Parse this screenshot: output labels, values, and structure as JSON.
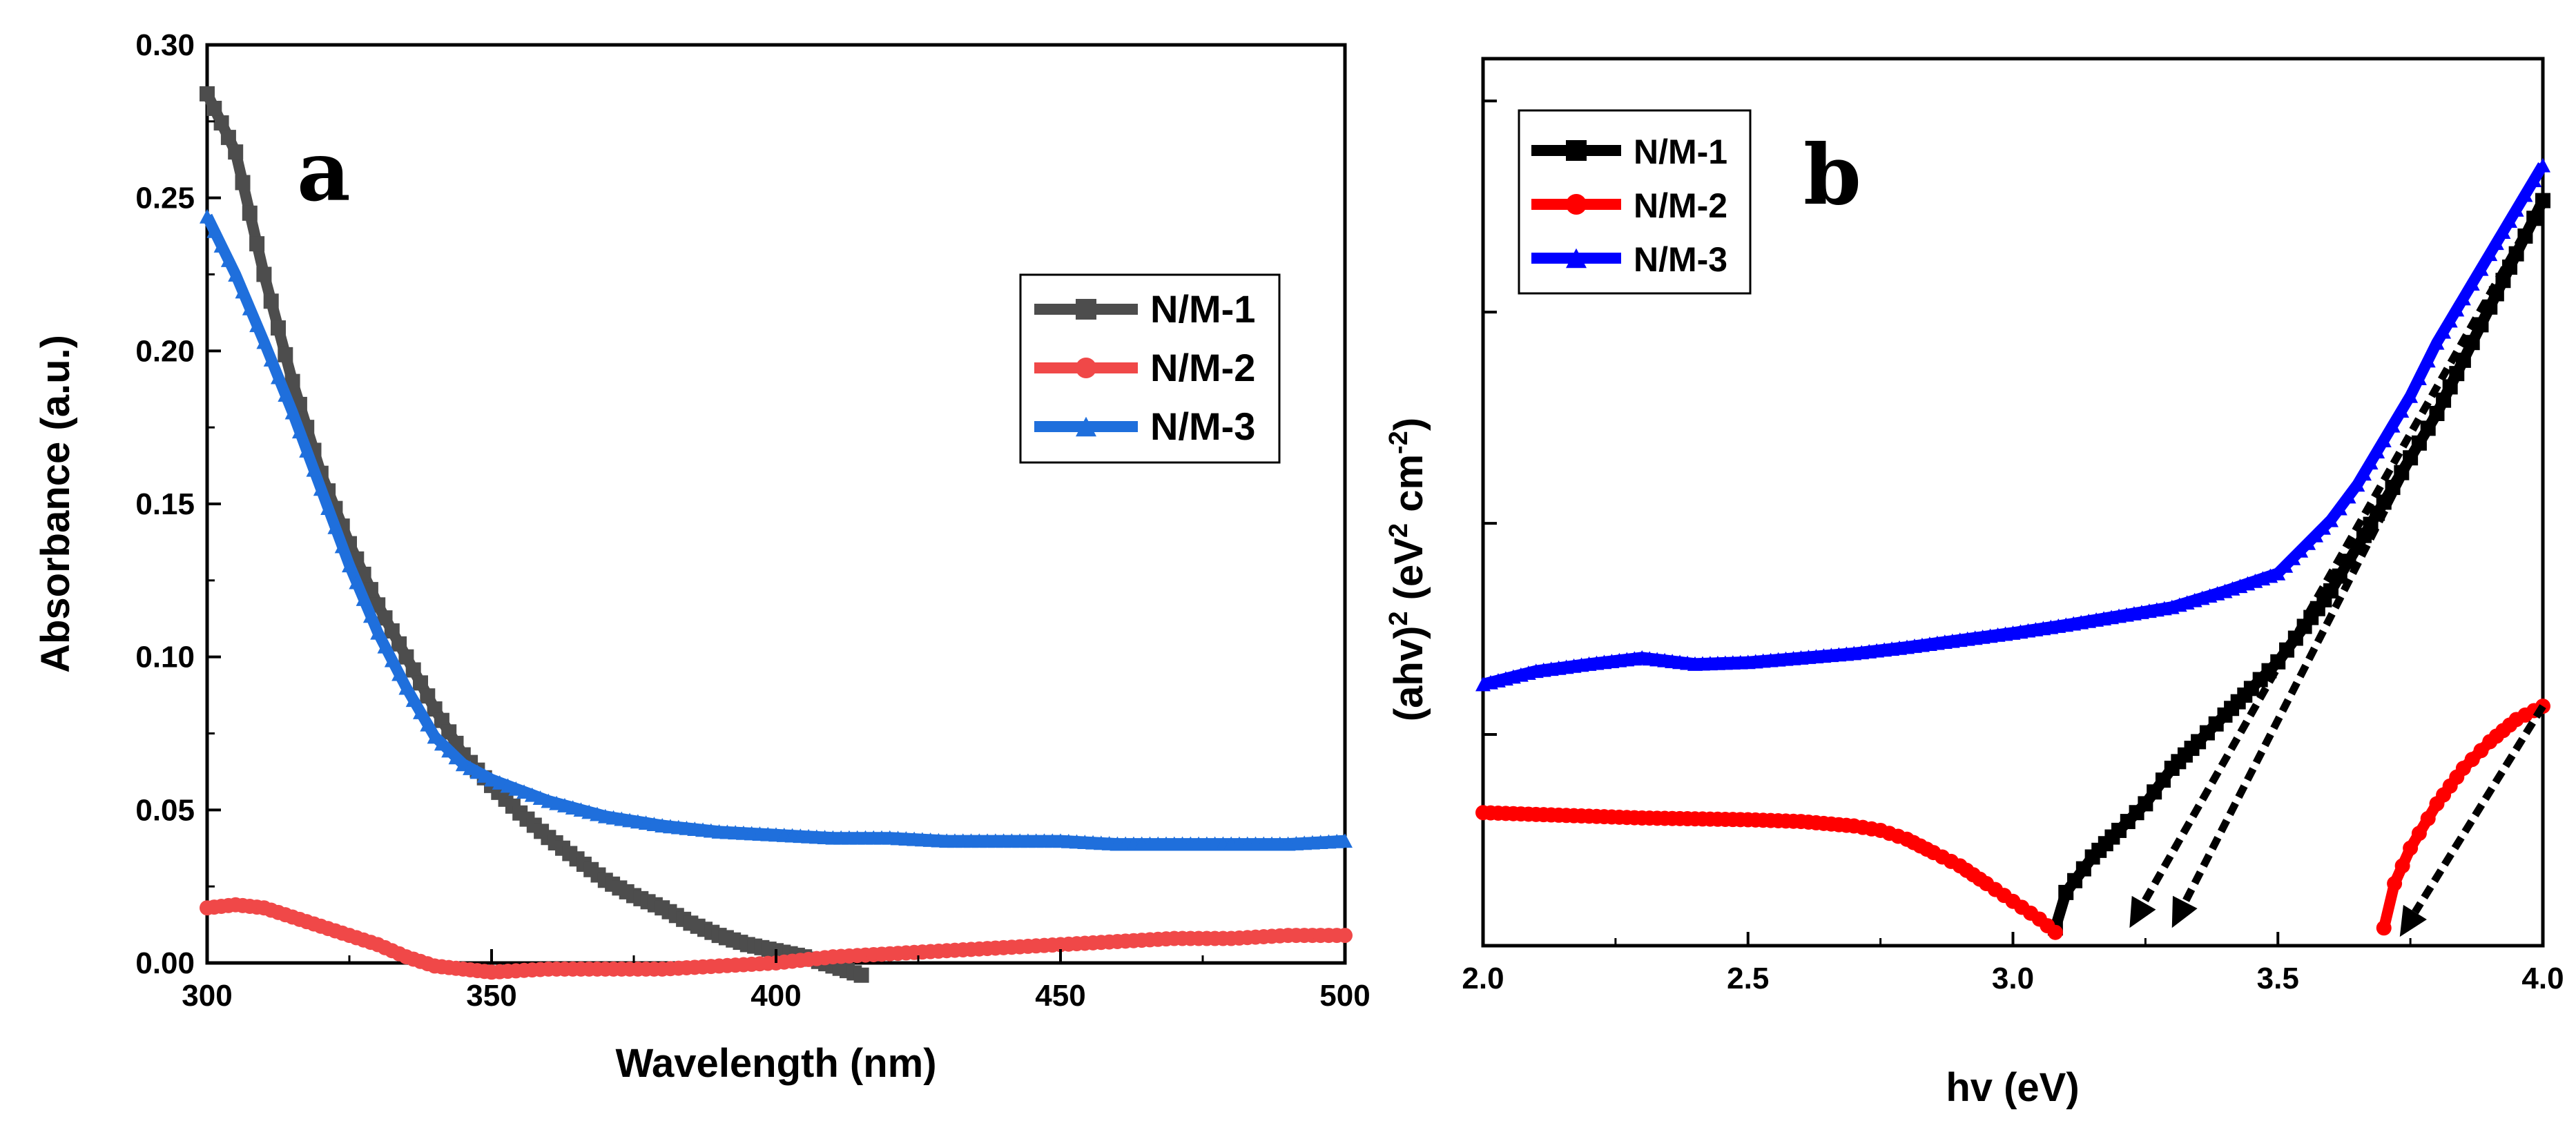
{
  "chart_data": [
    {
      "panel_label": "a",
      "type": "scatter",
      "xlabel": "Wavelength (nm)",
      "ylabel": "Absorbance (a.u.)",
      "xlim": [
        300,
        500
      ],
      "ylim": [
        0,
        0.3
      ],
      "x_ticks": [
        "300",
        "350",
        "400",
        "450",
        "500"
      ],
      "y_ticks": [
        "0.00",
        "0.05",
        "0.10",
        "0.15",
        "0.20",
        "0.25",
        "0.30"
      ],
      "legend_position": "right-middle",
      "series": [
        {
          "name": "N/M-1",
          "color": "#4d4d4d",
          "marker": "square",
          "x": [
            300,
            305,
            310,
            315,
            320,
            325,
            330,
            335,
            340,
            345,
            350,
            355,
            360,
            365,
            370,
            375,
            380,
            385,
            390,
            395,
            400,
            405,
            410,
            415
          ],
          "y": [
            0.284,
            0.265,
            0.225,
            0.19,
            0.16,
            0.137,
            0.117,
            0.1,
            0.083,
            0.068,
            0.058,
            0.049,
            0.041,
            0.034,
            0.027,
            0.022,
            0.018,
            0.013,
            0.009,
            0.006,
            0.004,
            0.002,
            -0.001,
            -0.004
          ]
        },
        {
          "name": "N/M-2",
          "color": "#f04848",
          "marker": "circle",
          "x": [
            300,
            305,
            310,
            315,
            320,
            325,
            330,
            335,
            340,
            345,
            350,
            360,
            370,
            380,
            390,
            400,
            410,
            420,
            430,
            440,
            450,
            460,
            470,
            480,
            490,
            500
          ],
          "y": [
            0.018,
            0.019,
            0.018,
            0.015,
            0.012,
            0.009,
            0.006,
            0.002,
            -0.001,
            -0.002,
            -0.003,
            -0.002,
            -0.002,
            -0.002,
            -0.001,
            0.0,
            0.002,
            0.003,
            0.004,
            0.005,
            0.006,
            0.007,
            0.008,
            0.008,
            0.009,
            0.009
          ]
        },
        {
          "name": "N/M-3",
          "color": "#1f6fdc",
          "marker": "triangle",
          "x": [
            300,
            305,
            310,
            315,
            320,
            325,
            330,
            335,
            340,
            345,
            350,
            360,
            370,
            380,
            390,
            400,
            410,
            420,
            430,
            440,
            450,
            460,
            470,
            480,
            490,
            500
          ],
          "y": [
            0.244,
            0.225,
            0.203,
            0.18,
            0.155,
            0.13,
            0.108,
            0.09,
            0.074,
            0.065,
            0.06,
            0.053,
            0.048,
            0.045,
            0.043,
            0.042,
            0.041,
            0.041,
            0.04,
            0.04,
            0.04,
            0.039,
            0.039,
            0.039,
            0.039,
            0.04
          ]
        }
      ]
    },
    {
      "panel_label": "b",
      "type": "scatter",
      "xlabel": "hv (eV)",
      "ylabel_parts": [
        "(ahv)",
        "2",
        " (eV",
        "2",
        " cm",
        "-2",
        ")"
      ],
      "xlim": [
        2.0,
        4.0
      ],
      "ylim": [
        0,
        1
      ],
      "x_ticks": [
        "2.0",
        "2.5",
        "3.0",
        "3.5",
        "4.0"
      ],
      "y_tick_labels_shown": false,
      "legend_position": "top-left",
      "series": [
        {
          "name": "N/M-1",
          "color": "#000000",
          "marker": "square",
          "x": [
            3.08,
            3.1,
            3.15,
            3.2,
            3.25,
            3.3,
            3.35,
            3.4,
            3.45,
            3.5,
            3.55,
            3.6,
            3.65,
            3.7,
            3.75,
            3.8,
            3.85,
            3.9,
            3.95,
            4.0
          ],
          "y": [
            0.02,
            0.06,
            0.1,
            0.13,
            0.16,
            0.2,
            0.23,
            0.26,
            0.29,
            0.32,
            0.36,
            0.4,
            0.45,
            0.5,
            0.55,
            0.6,
            0.66,
            0.72,
            0.78,
            0.84
          ]
        },
        {
          "name": "N/M-2",
          "color": "#ff0000",
          "marker": "circle",
          "x": [
            2.0,
            2.1,
            2.2,
            2.3,
            2.4,
            2.5,
            2.6,
            2.7,
            2.75,
            2.8,
            2.85,
            2.9,
            2.95,
            3.0,
            3.05,
            3.08,
            3.7,
            3.72,
            3.75,
            3.8,
            3.85,
            3.9,
            3.95,
            4.0
          ],
          "y": [
            0.15,
            0.148,
            0.146,
            0.144,
            0.143,
            0.142,
            0.14,
            0.135,
            0.13,
            0.12,
            0.105,
            0.09,
            0.07,
            0.05,
            0.03,
            0.015,
            0.02,
            0.07,
            0.11,
            0.16,
            0.2,
            0.23,
            0.255,
            0.27
          ]
        },
        {
          "name": "N/M-3",
          "color": "#0000ff",
          "marker": "triangle",
          "x": [
            2.0,
            2.1,
            2.2,
            2.3,
            2.4,
            2.5,
            2.6,
            2.7,
            2.8,
            2.9,
            3.0,
            3.1,
            3.2,
            3.3,
            3.4,
            3.5,
            3.6,
            3.65,
            3.7,
            3.75,
            3.8,
            3.85,
            3.9,
            3.95,
            4.0
          ],
          "y": [
            0.295,
            0.31,
            0.318,
            0.325,
            0.318,
            0.32,
            0.325,
            0.33,
            0.337,
            0.345,
            0.353,
            0.362,
            0.372,
            0.382,
            0.4,
            0.42,
            0.48,
            0.52,
            0.57,
            0.62,
            0.68,
            0.73,
            0.78,
            0.83,
            0.88
          ]
        }
      ],
      "tangent_arrows": [
        {
          "from": [
            4.0,
            0.84
          ],
          "to": [
            3.22,
            0.02
          ]
        },
        {
          "from": [
            4.0,
            0.84
          ],
          "to": [
            3.3,
            0.02
          ]
        },
        {
          "from": [
            4.0,
            0.27
          ],
          "to": [
            3.73,
            0.01
          ]
        }
      ]
    }
  ]
}
